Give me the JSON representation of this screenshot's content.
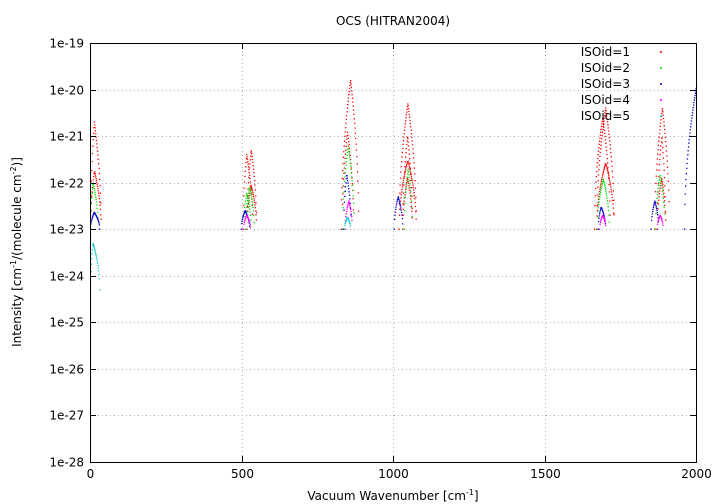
{
  "chart_data": {
    "type": "scatter",
    "title": "OCS (HITRAN2004)",
    "xlabel": {
      "pre": "Vacuum Wavenumber [cm",
      "sup": "-1",
      "post": "]"
    },
    "ylabel": {
      "p1": "Intensity [cm",
      "s1": "-1",
      "p2": "/(molecule cm",
      "s2": "-2",
      "p3": ")]"
    },
    "xlim": [
      0,
      2000
    ],
    "ylim": [
      1e-28,
      1e-19
    ],
    "y_scale": "log",
    "grid": true,
    "legend_position": "top-right",
    "xticks": [
      "0",
      "500",
      "1000",
      "1500",
      "2000"
    ],
    "yticks": [
      "1e-28",
      "1e-27",
      "1e-26",
      "1e-25",
      "1e-24",
      "1e-23",
      "1e-22",
      "1e-21",
      "1e-20",
      "1e-19"
    ],
    "series": [
      {
        "name": "ISOid=1",
        "color": "#ff0000",
        "bands": [
          {
            "start": 0,
            "center": 12,
            "end": 35,
            "peak": 2e-21,
            "floor": 1e-23
          },
          {
            "start": 503,
            "center": 515,
            "end": 535,
            "peak": 4e-22,
            "floor": 1e-23
          },
          {
            "start": 516,
            "center": 530,
            "end": 548,
            "peak": 5e-22,
            "floor": 1e-23
          },
          {
            "start": 827,
            "center": 858,
            "end": 885,
            "peak": 1.6e-20,
            "floor": 1e-23
          },
          {
            "start": 1018,
            "center": 1047,
            "end": 1075,
            "peak": 5e-21,
            "floor": 1e-23
          },
          {
            "start": 830,
            "center": 848,
            "end": 868,
            "peak": 1.2e-21,
            "floor": 1e-23
          },
          {
            "start": 1030,
            "center": 1046,
            "end": 1062,
            "peak": 1e-21,
            "floor": 1e-23
          },
          {
            "start": 1663,
            "center": 1690,
            "end": 1715,
            "peak": 2.5e-21,
            "floor": 1e-23
          },
          {
            "start": 1670,
            "center": 1700,
            "end": 1728,
            "peak": 4e-21,
            "floor": 1e-23
          },
          {
            "start": 1862,
            "center": 1887,
            "end": 1910,
            "peak": 4e-21,
            "floor": 1e-23
          },
          {
            "start": 1870,
            "center": 1885,
            "end": 1898,
            "peak": 1e-21,
            "floor": 1e-23
          }
        ]
      },
      {
        "name": "ISOid=2",
        "color": "#00dd00",
        "bands": [
          {
            "start": 0,
            "center": 8,
            "end": 25,
            "peak": 1e-22,
            "floor": 1e-23
          },
          {
            "start": 505,
            "center": 515,
            "end": 530,
            "peak": 6e-23,
            "floor": 1e-23
          },
          {
            "start": 512,
            "center": 525,
            "end": 540,
            "peak": 8e-23,
            "floor": 1e-23
          },
          {
            "start": 832,
            "center": 850,
            "end": 870,
            "peak": 6e-22,
            "floor": 1e-23
          },
          {
            "start": 1035,
            "center": 1048,
            "end": 1062,
            "peak": 2e-22,
            "floor": 1e-23
          },
          {
            "start": 1672,
            "center": 1692,
            "end": 1712,
            "peak": 1.2e-22,
            "floor": 1e-23
          },
          {
            "start": 1865,
            "center": 1880,
            "end": 1895,
            "peak": 1.5e-22,
            "floor": 1e-23
          }
        ]
      },
      {
        "name": "ISOid=3",
        "color": "#0000cc",
        "bands": [
          {
            "start": 0,
            "center": 12,
            "end": 30,
            "peak": 2.3e-23,
            "floor": 1e-23
          },
          {
            "start": 497,
            "center": 510,
            "end": 525,
            "peak": 2.5e-23,
            "floor": 1e-23
          },
          {
            "start": 835,
            "center": 845,
            "end": 860,
            "peak": 1.5e-22,
            "floor": 1e-23
          },
          {
            "start": 1002,
            "center": 1015,
            "end": 1030,
            "peak": 5e-23,
            "floor": 1e-23
          },
          {
            "start": 1675,
            "center": 1685,
            "end": 1700,
            "peak": 3e-23,
            "floor": 1e-23
          },
          {
            "start": 1850,
            "center": 1862,
            "end": 1875,
            "peak": 4e-23,
            "floor": 1e-23
          },
          {
            "start": 1960,
            "center": 2000,
            "end": 2000,
            "peak": 1.2e-20,
            "floor": 1e-23
          }
        ]
      },
      {
        "name": "ISOid=4",
        "color": "#ff00ff",
        "bands": [
          {
            "start": 505,
            "center": 515,
            "end": 528,
            "peak": 2e-23,
            "floor": 1e-23
          },
          {
            "start": 840,
            "center": 852,
            "end": 864,
            "peak": 4e-23,
            "floor": 1e-23
          },
          {
            "start": 1680,
            "center": 1690,
            "end": 1700,
            "peak": 2e-23,
            "floor": 1e-23
          },
          {
            "start": 1870,
            "center": 1880,
            "end": 1890,
            "peak": 2e-23,
            "floor": 1e-23
          }
        ]
      },
      {
        "name": "ISOid=5",
        "color": "#00cccc",
        "bands": [
          {
            "start": 0,
            "center": 8,
            "end": 30,
            "peak": 5e-24,
            "floor": 5e-25
          },
          {
            "start": 838,
            "center": 848,
            "end": 858,
            "peak": 1.8e-23,
            "floor": 1e-23
          }
        ]
      }
    ]
  }
}
